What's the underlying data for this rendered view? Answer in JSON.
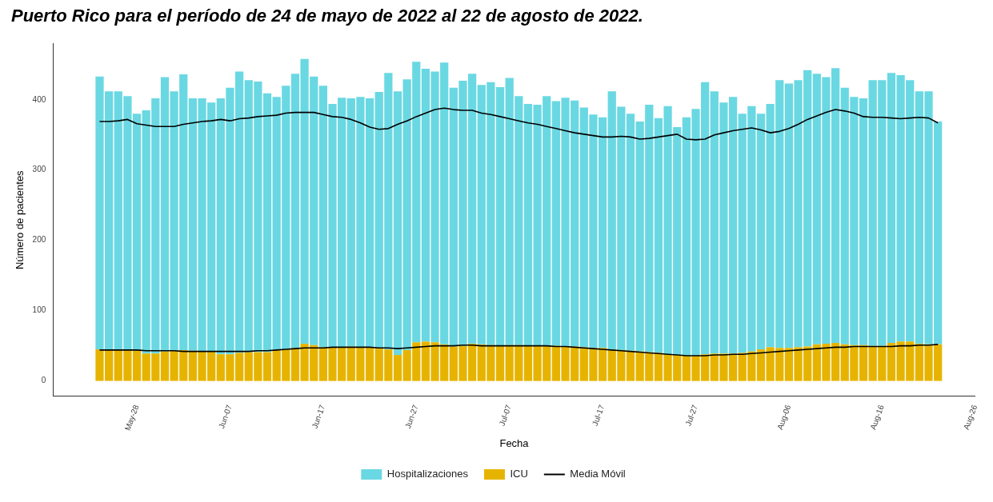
{
  "chart_data": {
    "type": "bar",
    "title": "Puerto Rico para el período de 24 de mayo de 2022 al 22 de agosto de 2022.",
    "xlabel": "Fecha",
    "ylabel": "Número de pacientes",
    "stacked": true,
    "legend": "bottom",
    "x": [
      "--05-24",
      "--05-25",
      "--05-26",
      "--05-27",
      "--05-28",
      "--05-29",
      "--05-30",
      "--05-31",
      "--06-01",
      "--06-02",
      "--06-03",
      "--06-04",
      "--06-05",
      "--06-06",
      "--06-07",
      "--06-08",
      "--06-09",
      "--06-10",
      "--06-11",
      "--06-12",
      "--06-13",
      "--06-14",
      "--06-15",
      "--06-16",
      "--06-17",
      "--06-18",
      "--06-19",
      "--06-20",
      "--06-21",
      "--06-22",
      "--06-23",
      "--06-24",
      "--06-25",
      "--06-26",
      "--06-27",
      "--06-28",
      "--06-29",
      "--06-30",
      "--07-01",
      "--07-02",
      "--07-03",
      "--07-04",
      "--07-05",
      "--07-06",
      "--07-07",
      "--07-08",
      "--07-09",
      "--07-10",
      "--07-11",
      "--07-12",
      "--07-13",
      "--07-14",
      "--07-15",
      "--07-16",
      "--07-17",
      "--07-18",
      "--07-19",
      "--07-20",
      "--07-21",
      "--07-22",
      "--07-23",
      "--07-24",
      "--07-25",
      "--07-26",
      "--07-27",
      "--07-28",
      "--07-29",
      "--07-30",
      "--07-31",
      "--08-01",
      "--08-02",
      "--08-03",
      "--08-04",
      "--08-05",
      "--08-06",
      "--08-07",
      "--08-08",
      "--08-09",
      "--08-10",
      "--08-11",
      "--08-12",
      "--08-13",
      "--08-14",
      "--08-15",
      "--08-16",
      "--08-17",
      "--08-18",
      "--08-19",
      "--08-20",
      "--08-21",
      "--08-22"
    ],
    "series": [
      {
        "name": "ICU",
        "color": "#e6b400",
        "values": [
          45,
          45,
          45,
          44,
          43,
          39,
          39,
          42,
          43,
          44,
          43,
          42,
          42,
          38,
          38,
          40,
          41,
          41,
          41,
          44,
          45,
          47,
          53,
          51,
          48,
          48,
          48,
          49,
          48,
          48,
          47,
          45,
          37,
          44,
          55,
          56,
          55,
          52,
          49,
          50,
          53,
          52,
          51,
          50,
          51,
          51,
          50,
          50,
          50,
          50,
          49,
          49,
          48,
          47,
          47,
          45,
          44,
          43,
          42,
          41,
          40,
          38,
          37,
          36,
          36,
          38,
          39,
          39,
          39,
          40,
          42,
          45,
          48,
          47,
          47,
          48,
          49,
          52,
          53,
          54,
          52,
          51,
          51,
          50,
          50,
          54,
          56,
          56,
          53,
          52,
          52
        ]
      },
      {
        "name": "Hospitalizaciones",
        "color": "#6ad8e2",
        "values": [
          388,
          367,
          367,
          361,
          337,
          346,
          363,
          390,
          369,
          392,
          359,
          360,
          354,
          364,
          379,
          400,
          387,
          385,
          368,
          360,
          375,
          390,
          405,
          382,
          372,
          346,
          355,
          353,
          356,
          354,
          364,
          393,
          375,
          385,
          399,
          388,
          385,
          401,
          368,
          377,
          384,
          369,
          374,
          368,
          380,
          354,
          344,
          343,
          355,
          348,
          354,
          350,
          341,
          332,
          328,
          367,
          346,
          337,
          327,
          352,
          334,
          353,
          324,
          339,
          351,
          387,
          373,
          357,
          365,
          340,
          349,
          335,
          346,
          381,
          376,
          380,
          393,
          385,
          379,
          391,
          365,
          353,
          351,
          378,
          378,
          384,
          379,
          372,
          359,
          360,
          317
        ]
      },
      {
        "name": "Media Móvil",
        "type": "line",
        "color": "#000000",
        "values": [
          369,
          369,
          370,
          372,
          366,
          364,
          362,
          362,
          362,
          365,
          367,
          369,
          370,
          372,
          370,
          373,
          374,
          376,
          377,
          378,
          381,
          382,
          382,
          382,
          379,
          376,
          375,
          372,
          367,
          361,
          358,
          359,
          365,
          370,
          376,
          381,
          386,
          388,
          386,
          385,
          385,
          381,
          379,
          376,
          373,
          370,
          367,
          365,
          362,
          359,
          356,
          353,
          351,
          349,
          347,
          347,
          348,
          347,
          344,
          345,
          347,
          349,
          351,
          344,
          343,
          344,
          350,
          353,
          356,
          358,
          360,
          357,
          353,
          355,
          359,
          365,
          372,
          377,
          382,
          386,
          384,
          381,
          376,
          375,
          375,
          374,
          373,
          374,
          375,
          374,
          367
        ]
      },
      {
        "type": "line",
        "color": "#000000",
        "values": [
          44,
          44,
          44,
          44,
          44,
          43,
          43,
          43,
          43,
          42,
          42,
          42,
          42,
          42,
          42,
          42,
          42,
          43,
          43,
          44,
          45,
          46,
          47,
          47,
          47,
          48,
          48,
          48,
          48,
          48,
          47,
          47,
          46,
          47,
          48,
          49,
          50,
          50,
          50,
          51,
          51,
          50,
          50,
          50,
          50,
          50,
          50,
          50,
          50,
          49,
          49,
          48,
          47,
          46,
          45,
          44,
          43,
          42,
          41,
          40,
          39,
          38,
          37,
          36,
          36,
          36,
          37,
          37,
          38,
          38,
          39,
          40,
          41,
          42,
          43,
          44,
          45,
          46,
          47,
          48,
          48,
          49,
          49,
          49,
          49,
          49,
          50,
          50,
          51,
          51,
          52
        ]
      }
    ],
    "ylim": [
      -22,
      480
    ],
    "yticks": [
      0,
      100,
      200,
      300,
      400
    ],
    "xlim": [
      "--05-19",
      "--08-26"
    ],
    "xticks": [
      {
        "value": "--05-28",
        "label": "May-28"
      },
      {
        "value": "--06-07",
        "label": "Jun-07"
      },
      {
        "value": "--06-17",
        "label": "Jun-17"
      },
      {
        "value": "--06-27",
        "label": "Jun-27"
      },
      {
        "value": "--07-07",
        "label": "Jul-07"
      },
      {
        "value": "--07-17",
        "label": "Jul-17"
      },
      {
        "value": "--07-27",
        "label": "Jul-27"
      },
      {
        "value": "--08-06",
        "label": "Aug-06"
      },
      {
        "value": "--08-16",
        "label": "Aug-16"
      },
      {
        "value": "--08-26",
        "label": "Aug-26"
      }
    ]
  }
}
